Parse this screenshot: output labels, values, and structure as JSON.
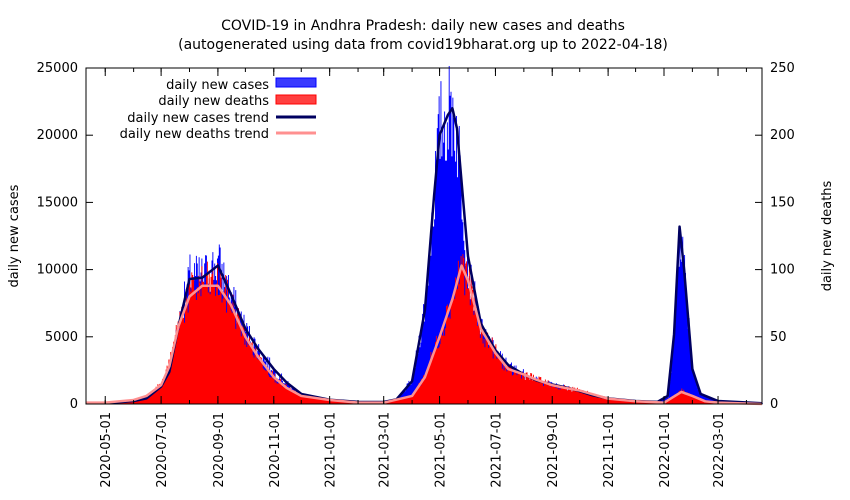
{
  "chart_data": {
    "type": "bar",
    "title": "COVID-19 in Andhra Pradesh: daily new cases and deaths",
    "subtitle": "(autogenerated using data from covid19bharat.org up to 2022-04-18)",
    "ylabel": "daily new cases",
    "y2label": "daily new deaths",
    "ylim": [
      0,
      25000
    ],
    "y2lim": [
      0,
      250
    ],
    "yticks": [
      "0",
      "5000",
      "10000",
      "15000",
      "20000",
      "25000"
    ],
    "y2ticks": [
      "0",
      "50",
      "100",
      "150",
      "200",
      "250"
    ],
    "xlim": [
      "2020-04-10",
      "2022-04-18"
    ],
    "xticks": [
      "2020-05-01",
      "2020-07-01",
      "2020-09-01",
      "2020-11-01",
      "2021-01-01",
      "2021-03-01",
      "2021-05-01",
      "2021-07-01",
      "2021-09-01",
      "2021-11-01",
      "2022-01-01",
      "2022-03-01"
    ],
    "legend_position": "top-left",
    "grid": false,
    "colors": {
      "cases_bar": "#0000ff",
      "deaths_bar": "#ff0000",
      "cases_trend": "#000060",
      "deaths_trend": "#ff9090"
    },
    "series": [
      {
        "name": "daily new cases",
        "kind": "bars",
        "axis": "left",
        "x": [
          "2020-04-10",
          "2020-05-01",
          "2020-06-01",
          "2020-06-15",
          "2020-07-01",
          "2020-07-10",
          "2020-07-20",
          "2020-08-01",
          "2020-08-15",
          "2020-09-01",
          "2020-09-15",
          "2020-10-01",
          "2020-10-15",
          "2020-11-01",
          "2020-11-15",
          "2020-12-01",
          "2021-01-01",
          "2021-02-01",
          "2021-03-01",
          "2021-03-15",
          "2021-04-01",
          "2021-04-15",
          "2021-04-25",
          "2021-05-01",
          "2021-05-10",
          "2021-05-15",
          "2021-05-20",
          "2021-06-01",
          "2021-06-15",
          "2021-07-01",
          "2021-07-15",
          "2021-08-01",
          "2021-08-15",
          "2021-09-01",
          "2021-09-15",
          "2021-10-01",
          "2021-10-15",
          "2021-11-01",
          "2021-12-01",
          "2021-12-25",
          "2022-01-05",
          "2022-01-12",
          "2022-01-18",
          "2022-01-23",
          "2022-02-01",
          "2022-02-10",
          "2022-03-01",
          "2022-04-18"
        ],
        "y": [
          80,
          70,
          250,
          450,
          1500,
          2500,
          6000,
          9500,
          9500,
          10500,
          8000,
          5500,
          4000,
          2500,
          1500,
          700,
          300,
          150,
          150,
          350,
          1800,
          7500,
          16000,
          20500,
          21500,
          22000,
          20000,
          10000,
          5500,
          3800,
          2800,
          2200,
          1700,
          1400,
          1200,
          900,
          600,
          400,
          200,
          150,
          600,
          5500,
          13500,
          10000,
          2500,
          700,
          200,
          50
        ]
      },
      {
        "name": "daily new deaths",
        "kind": "bars",
        "axis": "right",
        "x": [
          "2020-04-10",
          "2020-05-01",
          "2020-06-01",
          "2020-06-15",
          "2020-07-01",
          "2020-07-10",
          "2020-07-20",
          "2020-08-01",
          "2020-08-15",
          "2020-09-01",
          "2020-09-15",
          "2020-10-01",
          "2020-10-15",
          "2020-11-01",
          "2020-11-15",
          "2020-12-01",
          "2021-01-01",
          "2021-02-01",
          "2021-03-01",
          "2021-04-01",
          "2021-04-15",
          "2021-05-01",
          "2021-05-15",
          "2021-05-25",
          "2021-06-01",
          "2021-06-15",
          "2021-07-01",
          "2021-07-15",
          "2021-08-01",
          "2021-08-15",
          "2021-09-01",
          "2021-09-15",
          "2021-10-01",
          "2021-11-01",
          "2021-12-01",
          "2022-01-01",
          "2022-01-20",
          "2022-02-01",
          "2022-02-15",
          "2022-03-01",
          "2022-04-18"
        ],
        "y": [
          1,
          1,
          3,
          6,
          15,
          30,
          62,
          82,
          90,
          90,
          75,
          50,
          35,
          20,
          12,
          6,
          3,
          1,
          1,
          6,
          22,
          52,
          80,
          105,
          90,
          55,
          38,
          25,
          22,
          18,
          14,
          12,
          10,
          4,
          2,
          1,
          10,
          6,
          2,
          1,
          0
        ]
      },
      {
        "name": "daily new cases trend",
        "kind": "line",
        "axis": "left",
        "x": [
          "2020-04-10",
          "2020-05-01",
          "2020-06-01",
          "2020-06-15",
          "2020-07-01",
          "2020-07-10",
          "2020-07-20",
          "2020-08-01",
          "2020-08-15",
          "2020-09-01",
          "2020-09-15",
          "2020-10-01",
          "2020-10-15",
          "2020-11-01",
          "2020-11-15",
          "2020-12-01",
          "2021-01-01",
          "2021-02-01",
          "2021-03-01",
          "2021-03-15",
          "2021-04-01",
          "2021-04-15",
          "2021-04-25",
          "2021-05-01",
          "2021-05-10",
          "2021-05-15",
          "2021-05-20",
          "2021-06-01",
          "2021-06-15",
          "2021-07-01",
          "2021-07-15",
          "2021-08-01",
          "2021-08-15",
          "2021-09-01",
          "2021-09-15",
          "2021-10-01",
          "2021-10-15",
          "2021-11-01",
          "2021-12-01",
          "2021-12-25",
          "2022-01-05",
          "2022-01-12",
          "2022-01-18",
          "2022-01-23",
          "2022-02-01",
          "2022-02-10",
          "2022-03-01",
          "2022-04-18"
        ],
        "y": [
          60,
          60,
          220,
          420,
          1300,
          2400,
          5800,
          9300,
          9400,
          10300,
          8200,
          5600,
          4100,
          2600,
          1600,
          750,
          320,
          160,
          150,
          350,
          1700,
          7000,
          15500,
          20000,
          21500,
          22000,
          20500,
          11000,
          6000,
          4000,
          2900,
          2200,
          1750,
          1450,
          1250,
          950,
          650,
          420,
          220,
          160,
          600,
          5200,
          13200,
          10000,
          2600,
          750,
          220,
          60
        ]
      },
      {
        "name": "daily new deaths trend",
        "kind": "line",
        "axis": "right",
        "x": [
          "2020-04-10",
          "2020-05-01",
          "2020-06-01",
          "2020-06-15",
          "2020-07-01",
          "2020-07-10",
          "2020-07-20",
          "2020-08-01",
          "2020-08-15",
          "2020-09-01",
          "2020-09-15",
          "2020-10-01",
          "2020-10-15",
          "2020-11-01",
          "2020-11-15",
          "2020-12-01",
          "2021-01-01",
          "2021-02-01",
          "2021-03-01",
          "2021-04-01",
          "2021-04-15",
          "2021-05-01",
          "2021-05-15",
          "2021-05-25",
          "2021-06-01",
          "2021-06-15",
          "2021-07-01",
          "2021-07-15",
          "2021-08-01",
          "2021-08-15",
          "2021-09-01",
          "2021-09-15",
          "2021-10-01",
          "2021-11-01",
          "2021-12-01",
          "2022-01-01",
          "2022-01-20",
          "2022-02-01",
          "2022-02-15",
          "2022-03-01",
          "2022-04-18"
        ],
        "y": [
          1,
          1,
          3,
          6,
          14,
          28,
          58,
          80,
          88,
          88,
          74,
          50,
          35,
          20,
          12,
          6,
          3,
          1,
          1,
          6,
          20,
          50,
          78,
          103,
          92,
          56,
          38,
          26,
          22,
          18,
          14,
          12,
          10,
          4,
          2,
          1,
          9,
          6,
          2,
          1,
          0
        ]
      }
    ]
  }
}
